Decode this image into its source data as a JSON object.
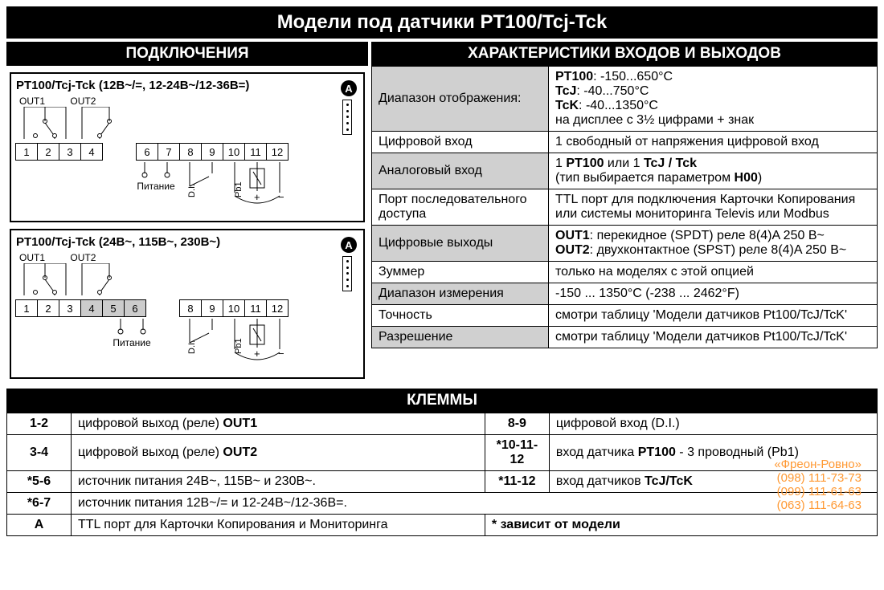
{
  "main_title": "Модели под датчики PT100/Tcj-Tck",
  "connections": {
    "header": "ПОДКЛЮЧЕНИЯ",
    "diagrams": [
      {
        "title": "PT100/Tcj-Tck (12В~/=, 12-24В~/12-36В=)",
        "badge": "A",
        "out_labels": [
          "OUT1",
          "OUT2"
        ],
        "terminals1": [
          "1",
          "2",
          "3",
          "4"
        ],
        "terminals2": [
          "6",
          "7",
          "8",
          "9",
          "10",
          "11",
          "12"
        ],
        "shaded": [],
        "power_label": "Питание",
        "di_label": "D.I.",
        "pb1_label": "Pb1"
      },
      {
        "title": "PT100/Tcj-Tck (24В~, 115В~, 230В~)",
        "badge": "A",
        "out_labels": [
          "OUT1",
          "OUT2"
        ],
        "terminals1": [
          "1",
          "2",
          "3",
          "4",
          "5",
          "6"
        ],
        "terminals2": [
          "8",
          "9",
          "10",
          "11",
          "12"
        ],
        "shaded": [
          "4",
          "5",
          "6"
        ],
        "power_label": "Питание",
        "di_label": "D.I.",
        "pb1_label": "Pb1"
      }
    ]
  },
  "specs": {
    "header": "ХАРАКТЕРИСТИКИ ВХОДОВ И ВЫХОДОВ",
    "rows": [
      {
        "k": "Диапазон отображения:",
        "v": "<b>PT100</b>: -150...650°C<br><b>TcJ</b>: -40...750°C<br><b>TcK</b>: -40...1350°C<br>на дисплее с 3½ цифрами + знак",
        "shade": true
      },
      {
        "k": "Цифровой вход",
        "v": "1 свободный от напряжения цифровой вход",
        "shade": false
      },
      {
        "k": "Аналоговый вход",
        "v": "1 <b>PT100</b> или 1 <b>TcJ / Tck</b><br>(тип выбирается параметром <b>H00</b>)",
        "shade": true
      },
      {
        "k": "Порт последовательного доступа",
        "v": "TTL порт для подключения Карточки Копирования или системы мониторинга Televis или Modbus",
        "shade": false
      },
      {
        "k": "Цифровые выходы",
        "v": "<b>OUT1</b>: перекидное (SPDT) реле 8(4)A 250 В~<br><b>OUT2</b>: двухконтактное (SPST) реле 8(4)A 250 В~",
        "shade": true
      },
      {
        "k": "Зуммер",
        "v": "только на моделях с этой опцией",
        "shade": false
      },
      {
        "k": "Диапазон измерения",
        "v": "-150 ... 1350°C (-238 ... 2462°F)",
        "shade": true
      },
      {
        "k": "Точность",
        "v": "смотри таблицу 'Модели датчиков Pt100/TcJ/TcK'",
        "shade": false
      },
      {
        "k": "Разрешение",
        "v": "смотри таблицу 'Модели датчиков Pt100/TcJ/TcK'",
        "shade": true
      }
    ]
  },
  "terminals": {
    "header": "КЛЕММЫ",
    "left": [
      {
        "k": "1-2",
        "v": "цифровой выход (реле) <b>OUT1</b>"
      },
      {
        "k": "3-4",
        "v": "цифровой выход (реле) <b>OUT2</b>"
      },
      {
        "k": "*5-6",
        "v": "источник питания 24В~, 115В~ и 230В~."
      },
      {
        "k": "*6-7",
        "v": "источник питания  12В~/= и 12-24В~/12-36В=."
      }
    ],
    "right": [
      {
        "k": "8-9",
        "v": "цифровой вход (D.I.)"
      },
      {
        "k": "*10-11-12",
        "v": "вход датчика <b>PT100</b> - 3 проводный (Pb1)"
      },
      {
        "k": "*11-12",
        "v": "вход датчиков <b>TcJ/TcK</b>"
      }
    ],
    "bottom": {
      "k": "A",
      "v": "TTL порт для Карточки Копирования и Мониторинга",
      "note": "* зависит от модели"
    }
  },
  "overlay": {
    "line1": "«Фреон-Ровно»",
    "line2": "(098) 111-73-73",
    "line3": "(099) 111-61-63",
    "line4": "(063) 111-64-63"
  },
  "colors": {
    "title_bg": "#000000",
    "title_fg": "#ffffff",
    "shade_bg": "#d0d0d0",
    "overlay_color": "#ff9933"
  }
}
